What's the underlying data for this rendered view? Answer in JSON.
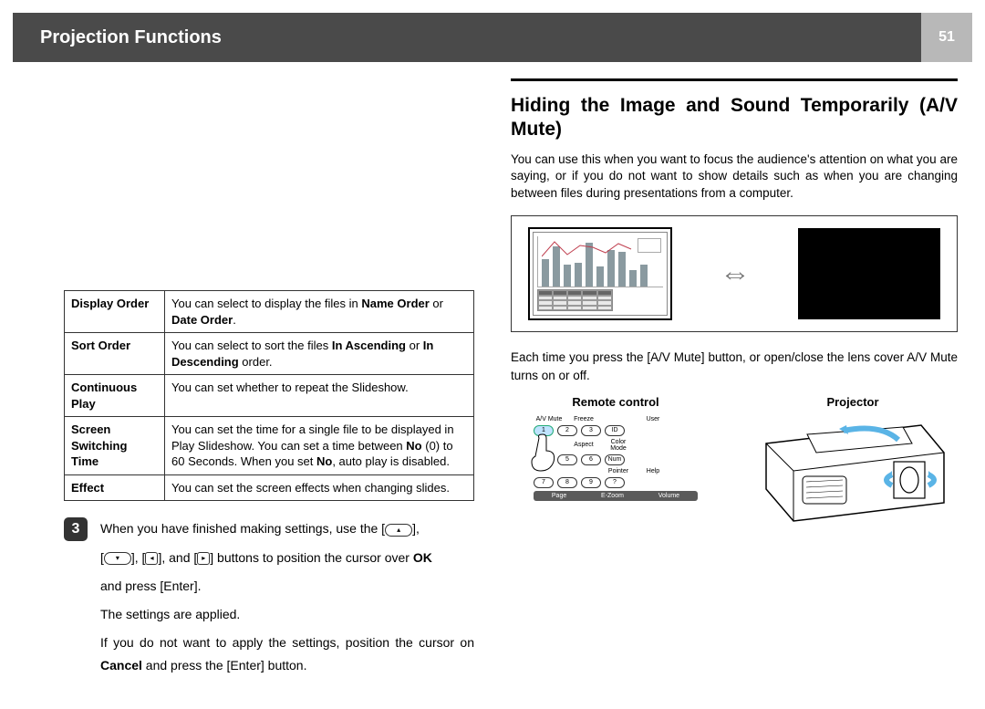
{
  "header": {
    "title": "Projection Functions",
    "page": "51"
  },
  "options_table": {
    "rows": [
      {
        "label": "Display Order",
        "desc_pre": "You can select to display the files in ",
        "b1": "Name Order",
        "mid": " or ",
        "b2": "Date Order",
        "suf": "."
      },
      {
        "label": "Sort Order",
        "desc_pre": "You can select to sort the files ",
        "b1": "In Ascending",
        "mid": " or ",
        "b2": "In Descending",
        "suf": " order."
      },
      {
        "label": "Continuous Play",
        "desc": "You can set whether to repeat the Slideshow."
      },
      {
        "label": "Screen Switching Time",
        "desc_pre": "You can set the time for a single file to be displayed in Play Slideshow. You can set a time between ",
        "b1": "No",
        "mid": " (0) to 60 Seconds. When you set ",
        "b2": "No",
        "suf": ", auto play is disabled."
      },
      {
        "label": "Effect",
        "desc": "You can set the screen effects when changing slides."
      }
    ]
  },
  "step3": {
    "num": "3",
    "line1a": "When you have finished making settings, use the [",
    "line1b": "],",
    "line2a": "[",
    "line2b": "], [",
    "line2c": "], and [",
    "line2d": "] buttons to position the cursor over ",
    "ok": "OK",
    "line3": "and press [Enter].",
    "line4": "The settings are applied.",
    "line5a": "If you do not want to apply the settings, position the cursor on ",
    "cancel": "Cancel",
    "line5b": " and press the [Enter] button."
  },
  "section": {
    "title": "Hiding the Image and Sound Temporarily (A/V Mute)",
    "intro": "You can use this when you want to focus the audience's attention on what you are saying, or if you do not want to show details such as when you are changing between files during presentations from a computer.",
    "press": "Each time you press the [A/V Mute] button, or open/close the lens cover A/V Mute turns on or off.",
    "remote_label": "Remote control",
    "projector_label": "Projector"
  },
  "chart": {
    "bars": [
      30,
      44,
      24,
      26,
      48,
      22,
      40,
      38,
      18,
      24
    ],
    "bar_color": "#8a9aa0",
    "line_points": "0,18 14,2 28,16 42,6 56,8 70,14 84,4 98,10",
    "line_color": "#c04050"
  },
  "remote": {
    "row1_labels": [
      "A/V Mute",
      "Freeze",
      "",
      "User"
    ],
    "row1_btns": [
      "1",
      "2",
      "3",
      "ID"
    ],
    "row2_labels": [
      "",
      "Aspect",
      "Color Mode",
      ""
    ],
    "row2_btns": [
      "4",
      "5",
      "6",
      "Num"
    ],
    "row3_labels": [
      "",
      "",
      "Pointer",
      "Help"
    ],
    "row3_btns": [
      "7",
      "8",
      "9",
      "?"
    ],
    "bottom": [
      "Page",
      "E-Zoom",
      "Volume"
    ]
  }
}
